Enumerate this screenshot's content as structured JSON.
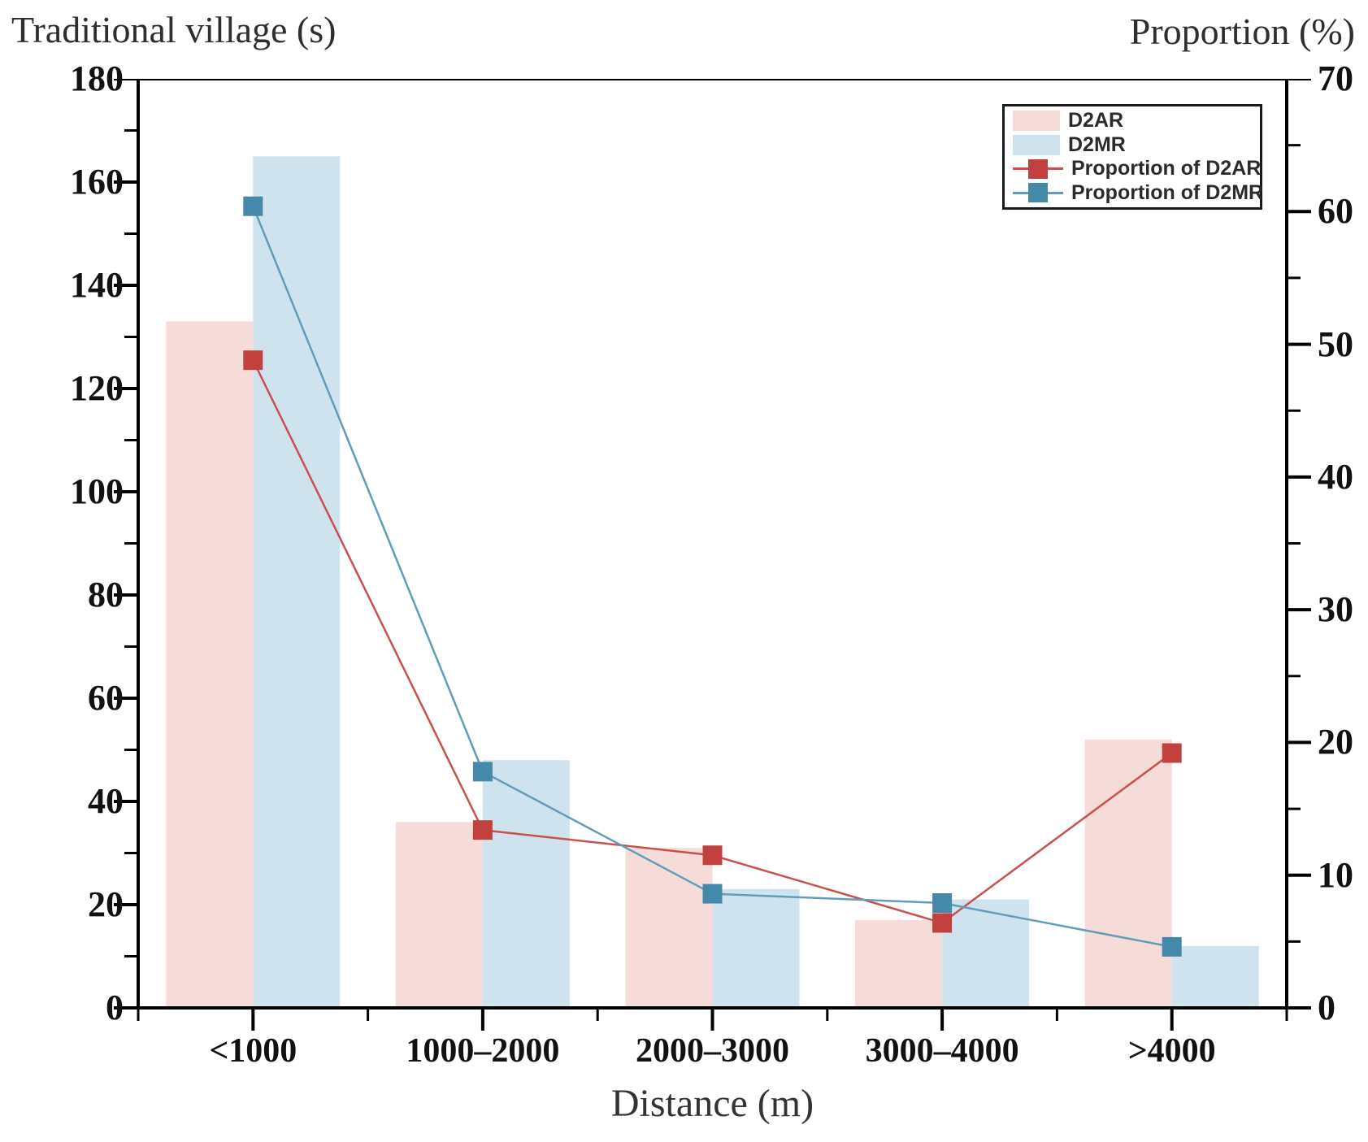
{
  "figure": {
    "left_axis_title": "Traditional village (s)",
    "right_axis_title": "Proportion (%)",
    "x_axis_title": "Distance (m)"
  },
  "colors": {
    "bar_d2ar": "#f5dcd8",
    "bar_d2mr": "#cfe3ef",
    "line_d2ar": "#cb4f4c",
    "marker_d2ar": "#c2403e",
    "line_d2mr": "#619dba",
    "marker_d2mr": "#4589aa",
    "axis": "#000000",
    "tick_label": "#111111"
  },
  "chart_data": {
    "type": "bar",
    "subtype": "dual-axis bar + line",
    "title": "",
    "xlabel": "Distance (m)",
    "categories": [
      "<1000",
      "1000–2000",
      "2000–3000",
      "3000–4000",
      ">4000"
    ],
    "bar_series": [
      {
        "name": "D2AR",
        "axis": "left",
        "values": [
          133,
          36,
          31,
          17,
          52
        ],
        "color": "#f5dcd8"
      },
      {
        "name": "D2MR",
        "axis": "left",
        "values": [
          165,
          48,
          23,
          21,
          12
        ],
        "color": "#cfe3ef"
      }
    ],
    "line_series": [
      {
        "name": "Proportion of D2AR",
        "axis": "right",
        "values": [
          48.8,
          13.4,
          11.5,
          6.4,
          19.2
        ],
        "line_color": "#cb4f4c",
        "marker_color": "#c2403e"
      },
      {
        "name": "Proportion of D2MR",
        "axis": "right",
        "values": [
          60.4,
          17.8,
          8.6,
          7.9,
          4.6
        ],
        "line_color": "#619dba",
        "marker_color": "#4589aa"
      }
    ],
    "left_axis": {
      "title": "Traditional village (s)",
      "min": 0,
      "max": 180,
      "major_step": 20,
      "minor_step": 10
    },
    "right_axis": {
      "title": "Proportion (%)",
      "min": 0,
      "max": 70,
      "major_step": 10,
      "minor_step": 5
    },
    "legend": {
      "position": "top-right",
      "items": [
        "D2AR",
        "D2MR",
        "Proportion of D2AR",
        "Proportion of D2MR"
      ]
    },
    "grid": false
  }
}
